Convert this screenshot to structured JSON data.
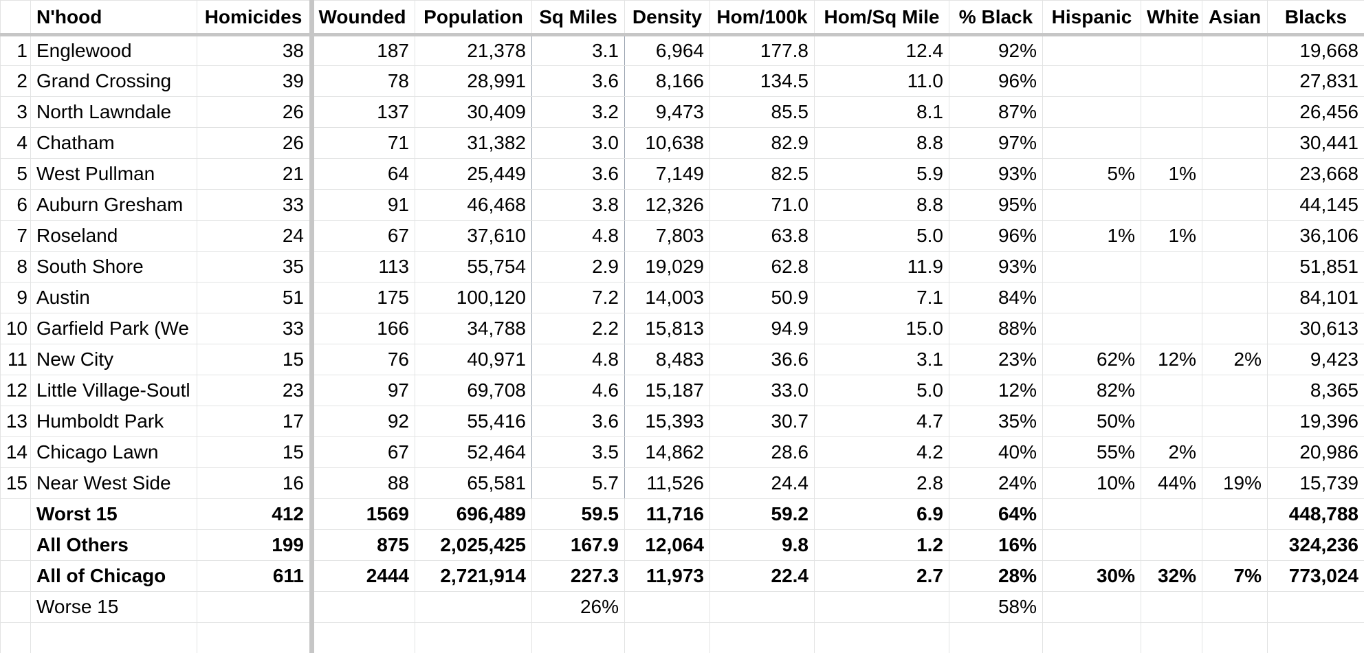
{
  "headers": [
    "",
    "N'hood",
    "Homicides",
    "Wounded",
    "Population",
    "Sq Miles",
    "Density",
    "Hom/100k",
    "Hom/Sq Mile",
    "% Black",
    "Hispanic",
    "White",
    "Asian",
    "Blacks"
  ],
  "rows": [
    [
      "1",
      "Englewood",
      "38",
      "187",
      "21,378",
      "3.1",
      "6,964",
      "177.8",
      "12.4",
      "92%",
      "",
      "",
      "",
      "19,668"
    ],
    [
      "2",
      "Grand Crossing",
      "39",
      "78",
      "28,991",
      "3.6",
      "8,166",
      "134.5",
      "11.0",
      "96%",
      "",
      "",
      "",
      "27,831"
    ],
    [
      "3",
      "North Lawndale",
      "26",
      "137",
      "30,409",
      "3.2",
      "9,473",
      "85.5",
      "8.1",
      "87%",
      "",
      "",
      "",
      "26,456"
    ],
    [
      "4",
      "Chatham",
      "26",
      "71",
      "31,382",
      "3.0",
      "10,638",
      "82.9",
      "8.8",
      "97%",
      "",
      "",
      "",
      "30,441"
    ],
    [
      "5",
      "West Pullman",
      "21",
      "64",
      "25,449",
      "3.6",
      "7,149",
      "82.5",
      "5.9",
      "93%",
      "5%",
      "1%",
      "",
      "23,668"
    ],
    [
      "6",
      "Auburn Gresham",
      "33",
      "91",
      "46,468",
      "3.8",
      "12,326",
      "71.0",
      "8.8",
      "95%",
      "",
      "",
      "",
      "44,145"
    ],
    [
      "7",
      "Roseland",
      "24",
      "67",
      "37,610",
      "4.8",
      "7,803",
      "63.8",
      "5.0",
      "96%",
      "1%",
      "1%",
      "",
      "36,106"
    ],
    [
      "8",
      "South Shore",
      "35",
      "113",
      "55,754",
      "2.9",
      "19,029",
      "62.8",
      "11.9",
      "93%",
      "",
      "",
      "",
      "51,851"
    ],
    [
      "9",
      "Austin",
      "51",
      "175",
      "100,120",
      "7.2",
      "14,003",
      "50.9",
      "7.1",
      "84%",
      "",
      "",
      "",
      "84,101"
    ],
    [
      "10",
      "Garfield Park (We",
      "33",
      "166",
      "34,788",
      "2.2",
      "15,813",
      "94.9",
      "15.0",
      "88%",
      "",
      "",
      "",
      "30,613"
    ],
    [
      "11",
      "New City",
      "15",
      "76",
      "40,971",
      "4.8",
      "8,483",
      "36.6",
      "3.1",
      "23%",
      "62%",
      "12%",
      "2%",
      "9,423"
    ],
    [
      "12",
      "Little Village-Soutl",
      "23",
      "97",
      "69,708",
      "4.6",
      "15,187",
      "33.0",
      "5.0",
      "12%",
      "82%",
      "",
      "",
      "8,365"
    ],
    [
      "13",
      "Humboldt Park",
      "17",
      "92",
      "55,416",
      "3.6",
      "15,393",
      "30.7",
      "4.7",
      "35%",
      "50%",
      "",
      "",
      "19,396"
    ],
    [
      "14",
      "Chicago Lawn",
      "15",
      "67",
      "52,464",
      "3.5",
      "14,862",
      "28.6",
      "4.2",
      "40%",
      "55%",
      "2%",
      "",
      "20,986"
    ],
    [
      "15",
      "Near West Side",
      "16",
      "88",
      "65,581",
      "5.7",
      "11,526",
      "24.4",
      "2.8",
      "24%",
      "10%",
      "44%",
      "19%",
      "15,739"
    ]
  ],
  "summary_rows": [
    [
      "",
      "Worst 15",
      "412",
      "1569",
      "696,489",
      "59.5",
      "11,716",
      "59.2",
      "6.9",
      "64%",
      "",
      "",
      "",
      "448,788"
    ],
    [
      "",
      "All Others",
      "199",
      "875",
      "2,025,425",
      "167.9",
      "12,064",
      "9.8",
      "1.2",
      "16%",
      "",
      "",
      "",
      "324,236"
    ],
    [
      "",
      "All of Chicago",
      "611",
      "2444",
      "2,721,914",
      "227.3",
      "11,973",
      "22.4",
      "2.7",
      "28%",
      "30%",
      "32%",
      "7%",
      "773,024"
    ]
  ],
  "footer_row": [
    "",
    "Worse 15",
    "",
    "",
    "",
    "26%",
    "",
    "",
    "",
    "58%",
    "",
    "",
    "",
    ""
  ]
}
